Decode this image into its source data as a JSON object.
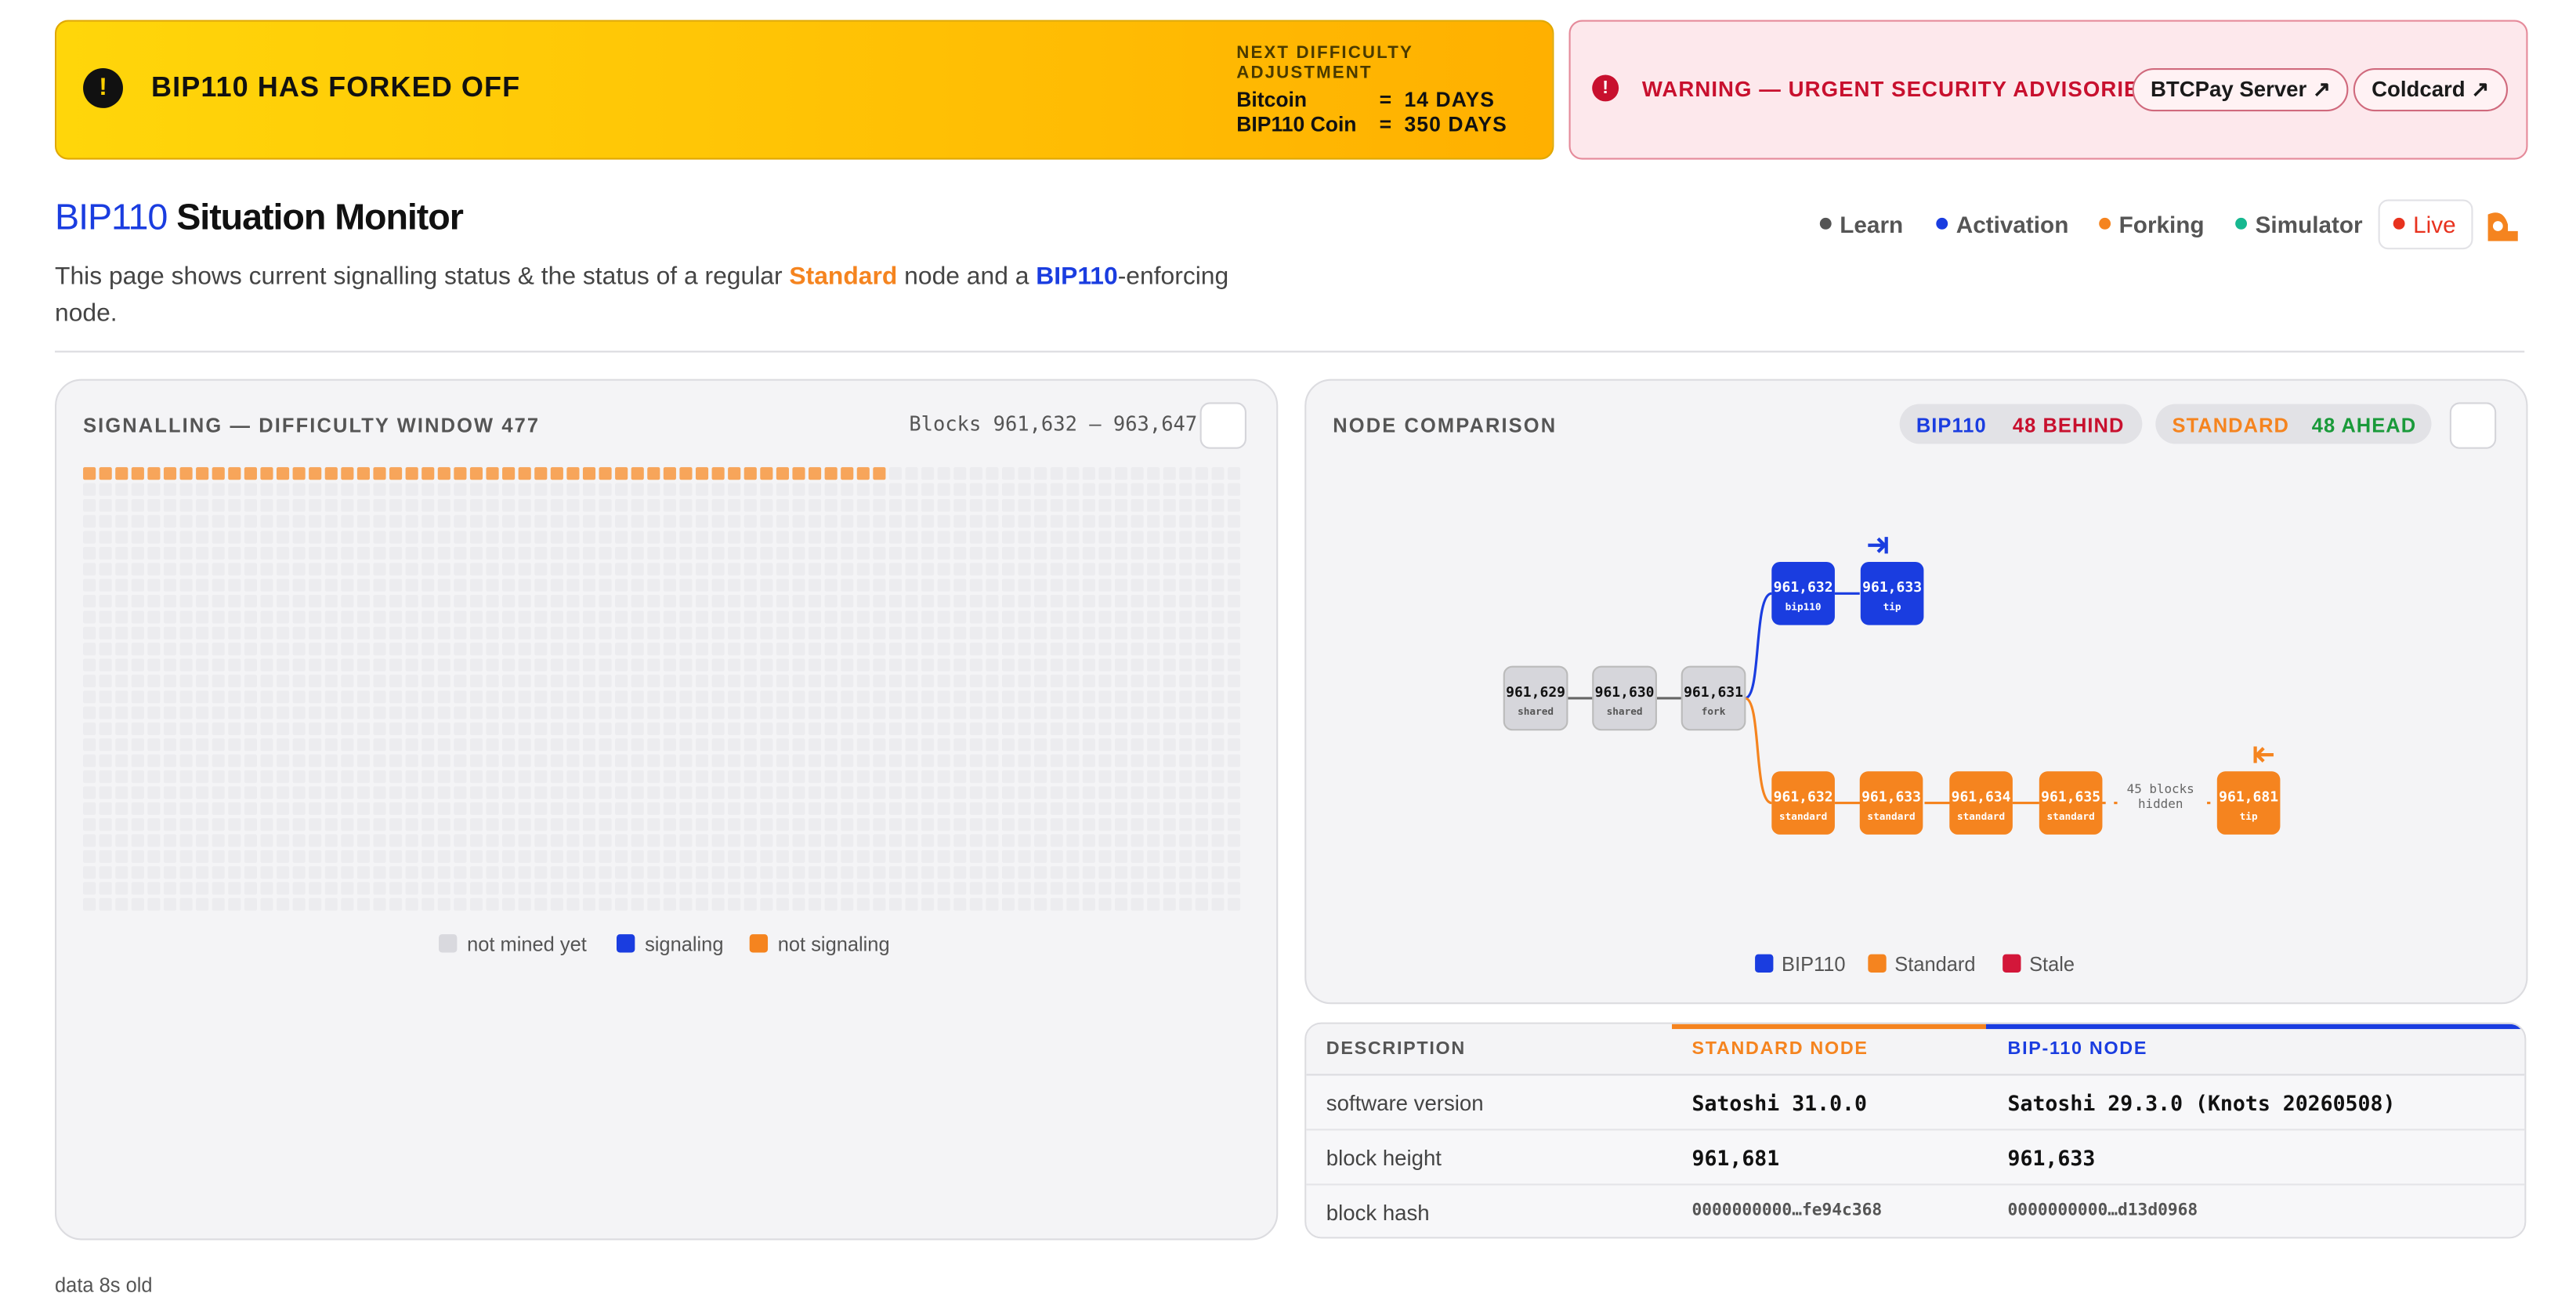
{
  "banner": {
    "title": "BIP110 HAS FORKED OFF",
    "adjustment_heading": "NEXT DIFFICULTY ADJUSTMENT",
    "adjustments": [
      {
        "chain": "Bitcoin",
        "eq": "=",
        "value": "14 DAYS"
      },
      {
        "chain": "BIP110 Coin",
        "eq": "=",
        "value": "350 DAYS"
      }
    ]
  },
  "warning": {
    "title": "WARNING — URGENT SECURITY ADVISORIES",
    "links": [
      "BTCPay Server ↗",
      "Coldcard ↗"
    ]
  },
  "header": {
    "title_accent": "BIP110",
    "title_rest": "Situation Monitor",
    "nav": [
      "Learn",
      "Activation",
      "Forking",
      "Simulator"
    ],
    "live": "Live",
    "description": [
      "This page shows current signalling status & the status of a regular ",
      "Standard",
      " node and a ",
      "BIP110",
      "-enforcing node."
    ]
  },
  "signalling": {
    "title": "SIGNALLING — DIFFICULTY WINDOW 477",
    "range": "Blocks 961,632 – 963,647",
    "blocks": 2016,
    "not_signaling": 50,
    "signaling": 0,
    "legend": [
      "not mined yet",
      "signaling",
      "not signaling"
    ]
  },
  "comparison": {
    "title": "NODE COMPARISON",
    "badges": [
      {
        "name": "BIP110",
        "status": "48 BEHIND"
      },
      {
        "name": "STANDARD",
        "status": "48 AHEAD"
      }
    ],
    "trunk": [
      {
        "height": "961,629",
        "label": "shared"
      },
      {
        "height": "961,630",
        "label": "shared"
      },
      {
        "height": "961,631",
        "label": "fork"
      }
    ],
    "bip110": [
      {
        "height": "961,632",
        "label": "bip110"
      },
      {
        "height": "961,633",
        "label": "tip"
      }
    ],
    "standard": [
      {
        "height": "961,632",
        "label": "standard"
      },
      {
        "height": "961,633",
        "label": "standard"
      },
      {
        "height": "961,634",
        "label": "standard"
      },
      {
        "height": "961,635",
        "label": "standard"
      },
      {
        "height": "961,681",
        "label": "tip"
      }
    ],
    "hidden": [
      "45 blocks",
      "hidden"
    ],
    "legend": [
      "BIP110",
      "Standard",
      "Stale"
    ]
  },
  "table": {
    "headers": [
      "DESCRIPTION",
      "STANDARD NODE",
      "BIP-110 NODE"
    ],
    "rows": [
      [
        "software version",
        "Satoshi 31.0.0",
        "Satoshi 29.3.0 (Knots 20260508)"
      ],
      [
        "block height",
        "961,681",
        "961,633"
      ],
      [
        "block hash",
        "0000000000…fe94c368",
        "0000000000…d13d0968"
      ]
    ]
  },
  "footer": "data 8s old"
}
